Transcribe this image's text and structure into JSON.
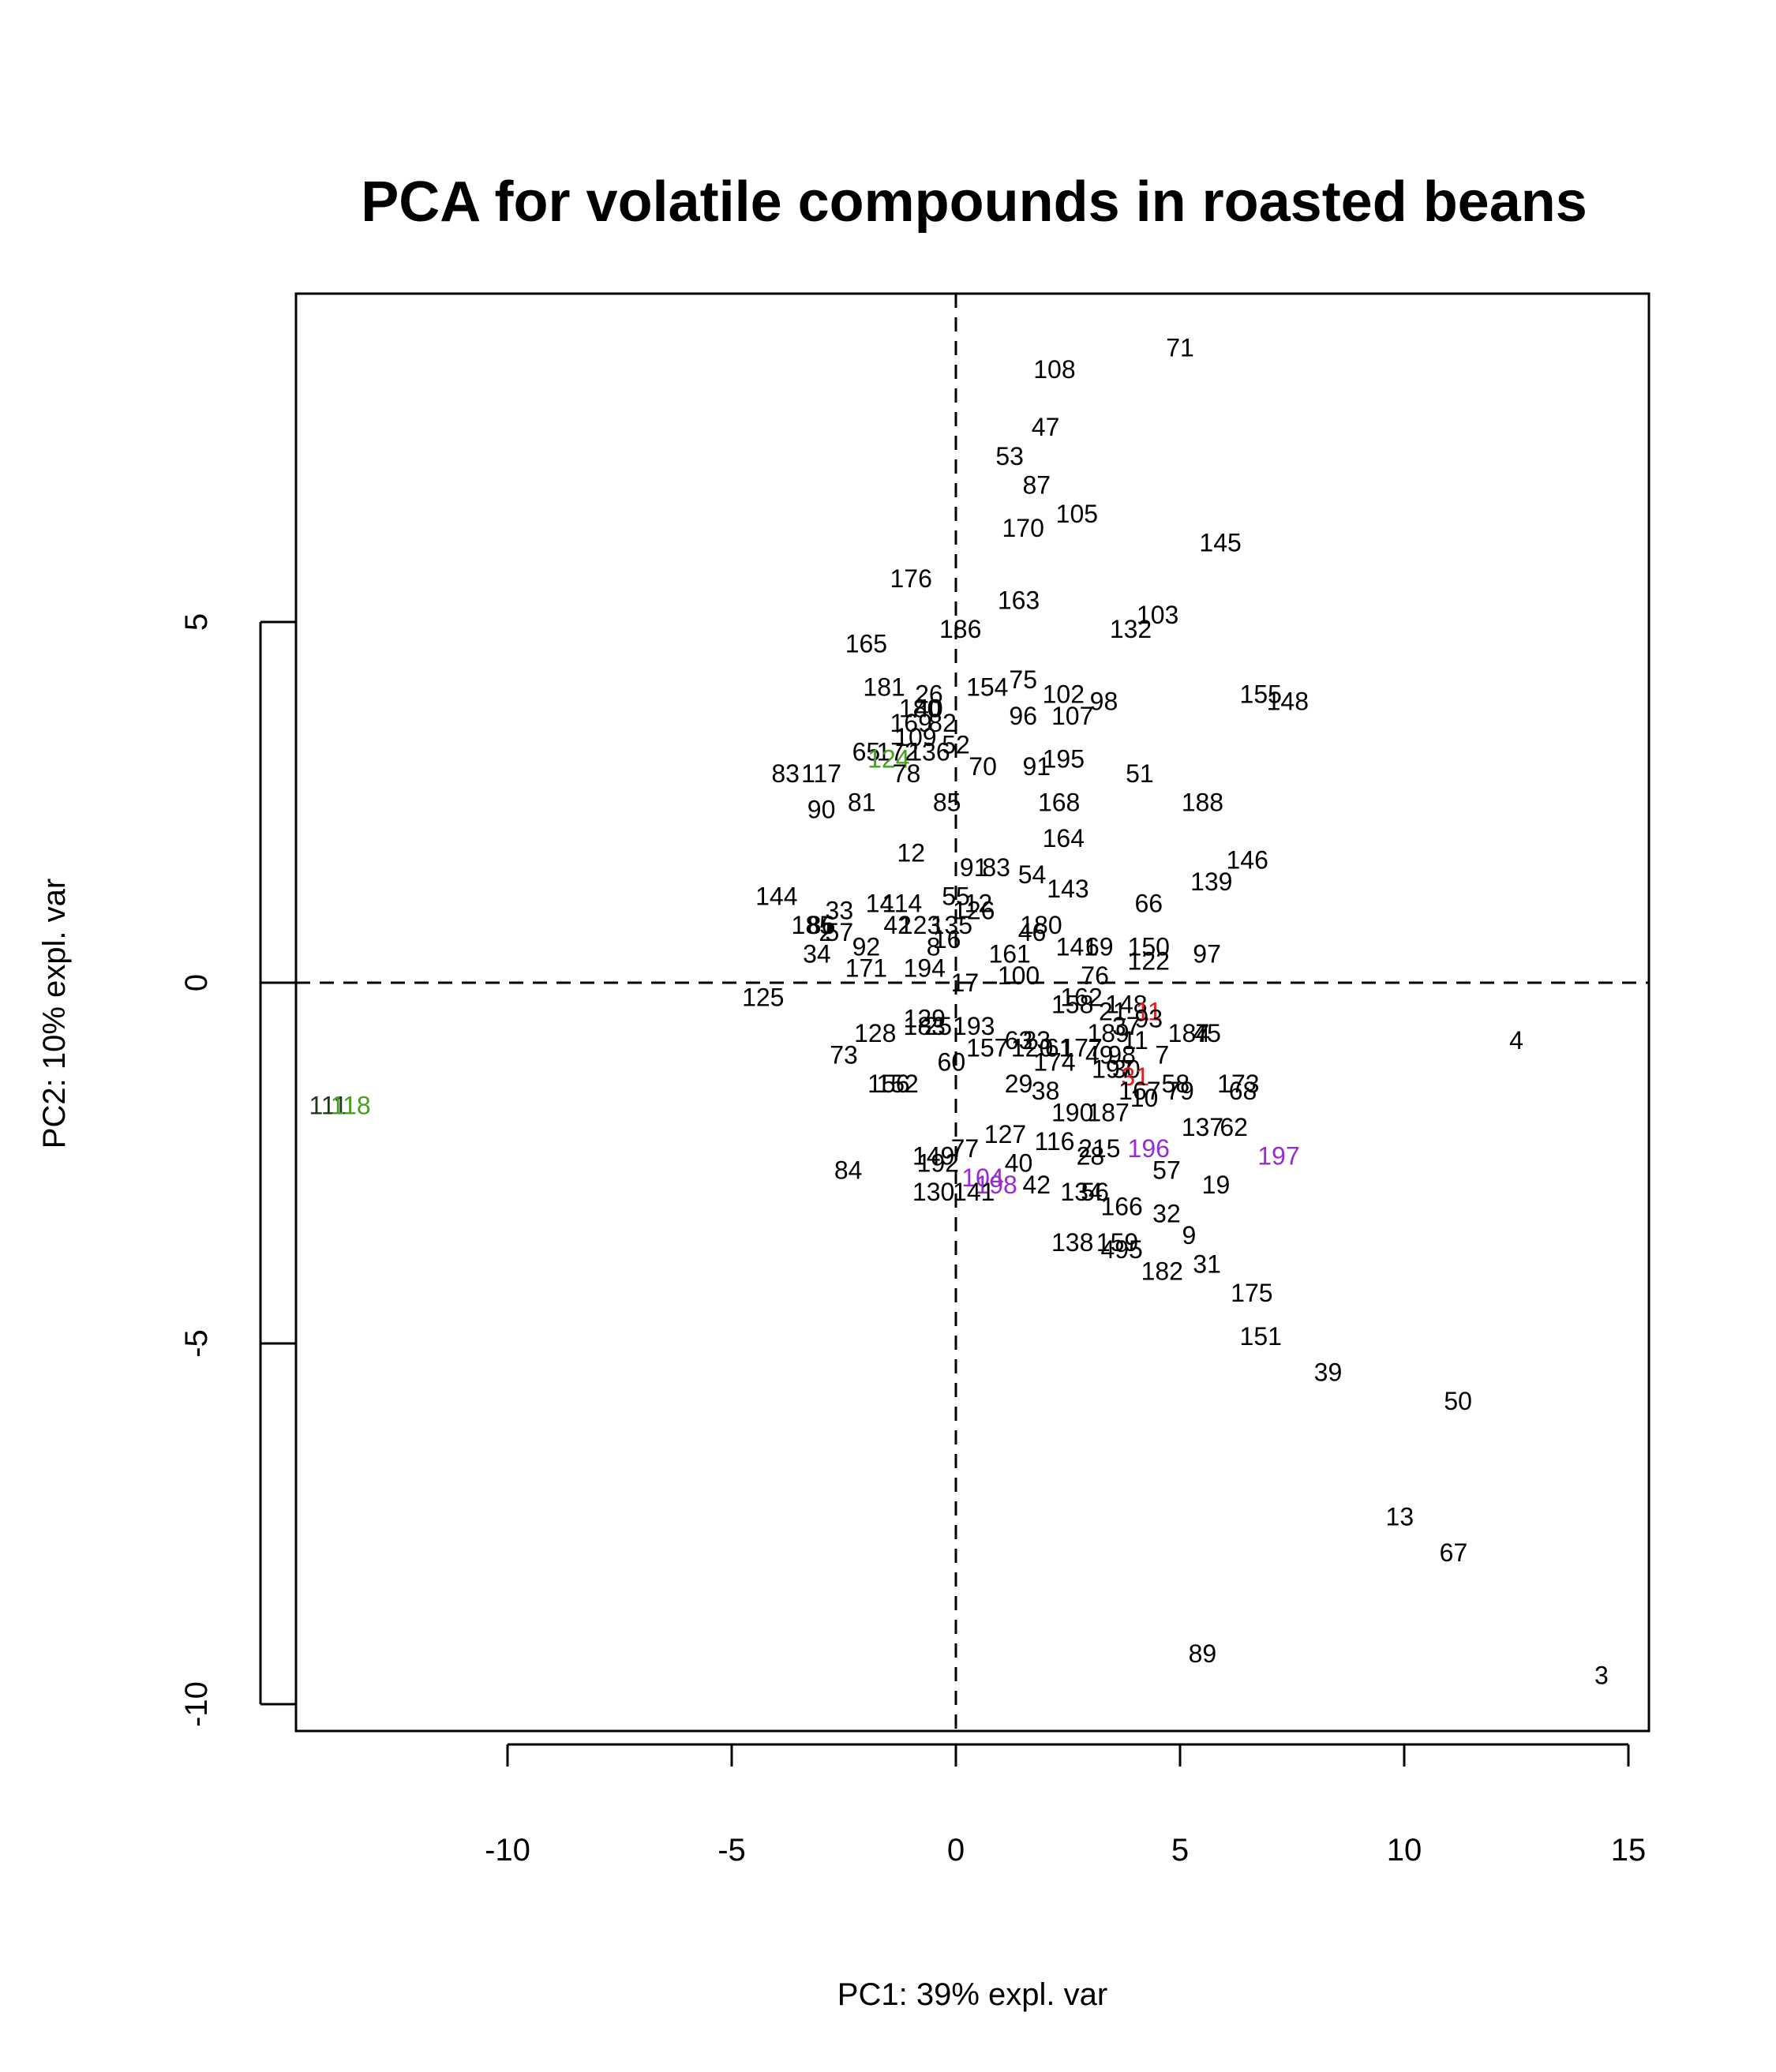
{
  "chart_data": {
    "type": "scatter",
    "title": "PCA for volatile compounds in roasted beans",
    "xlabel": "PC1: 39% expl. var",
    "ylabel": "PC2: 10% expl. var",
    "xlim": [
      -14.8,
      15.5
    ],
    "ylim": [
      -10.4,
      9.6
    ],
    "xticks": [
      -10,
      -5,
      0,
      5,
      10,
      15
    ],
    "yticks": [
      -10,
      -5,
      0,
      5
    ],
    "reference_lines": {
      "x": 0,
      "y": 0,
      "style": "dashed"
    },
    "colors": {
      "default": "#000000",
      "red": "#DF1F1F",
      "green": "#46A020",
      "purple": "#9A2BD3",
      "dark": "#1E3A10"
    },
    "points": [
      {
        "label": "71",
        "x": 5.0,
        "y": 8.8,
        "color": "default"
      },
      {
        "label": "108",
        "x": 2.2,
        "y": 8.5,
        "color": "default"
      },
      {
        "label": "47",
        "x": 2.0,
        "y": 7.7,
        "color": "default"
      },
      {
        "label": "53",
        "x": 1.2,
        "y": 7.3,
        "color": "default"
      },
      {
        "label": "87",
        "x": 1.8,
        "y": 6.9,
        "color": "default"
      },
      {
        "label": "105",
        "x": 2.7,
        "y": 6.5,
        "color": "default"
      },
      {
        "label": "170",
        "x": 1.5,
        "y": 6.3,
        "color": "default"
      },
      {
        "label": "145",
        "x": 5.9,
        "y": 6.1,
        "color": "default"
      },
      {
        "label": "176",
        "x": -1.0,
        "y": 5.6,
        "color": "default"
      },
      {
        "label": "163",
        "x": 1.4,
        "y": 5.3,
        "color": "default"
      },
      {
        "label": "103",
        "x": 4.5,
        "y": 5.1,
        "color": "default"
      },
      {
        "label": "132",
        "x": 3.9,
        "y": 4.9,
        "color": "default"
      },
      {
        "label": "186",
        "x": 0.1,
        "y": 4.9,
        "color": "default"
      },
      {
        "label": "165",
        "x": -2.0,
        "y": 4.7,
        "color": "default"
      },
      {
        "label": "181",
        "x": -1.6,
        "y": 4.1,
        "color": "default"
      },
      {
        "label": "26",
        "x": -0.6,
        "y": 4.0,
        "color": "default"
      },
      {
        "label": "154",
        "x": 0.7,
        "y": 4.1,
        "color": "default"
      },
      {
        "label": "75",
        "x": 1.5,
        "y": 4.2,
        "color": "default"
      },
      {
        "label": "102",
        "x": 2.4,
        "y": 4.0,
        "color": "default"
      },
      {
        "label": "98",
        "x": 3.3,
        "y": 3.9,
        "color": "default"
      },
      {
        "label": "155",
        "x": 6.8,
        "y": 4.0,
        "color": "default"
      },
      {
        "label": "148",
        "x": 7.4,
        "y": 3.9,
        "color": "default"
      },
      {
        "label": "180",
        "x": -0.8,
        "y": 3.8,
        "color": "default"
      },
      {
        "label": "40",
        "x": -0.6,
        "y": 3.8,
        "color": "default"
      },
      {
        "label": "96",
        "x": 1.5,
        "y": 3.7,
        "color": "default"
      },
      {
        "label": "107",
        "x": 2.6,
        "y": 3.7,
        "color": "default"
      },
      {
        "label": "169",
        "x": -1.0,
        "y": 3.6,
        "color": "default"
      },
      {
        "label": "82",
        "x": -0.3,
        "y": 3.6,
        "color": "default"
      },
      {
        "label": "109",
        "x": -0.9,
        "y": 3.4,
        "color": "default"
      },
      {
        "label": "172",
        "x": -1.3,
        "y": 3.2,
        "color": "default"
      },
      {
        "label": "136",
        "x": -0.6,
        "y": 3.2,
        "color": "default"
      },
      {
        "label": "52",
        "x": 0.0,
        "y": 3.3,
        "color": "default"
      },
      {
        "label": "65",
        "x": -2.0,
        "y": 3.2,
        "color": "default"
      },
      {
        "label": "124",
        "x": -1.5,
        "y": 3.1,
        "color": "green"
      },
      {
        "label": "195",
        "x": 2.4,
        "y": 3.1,
        "color": "default"
      },
      {
        "label": "91",
        "x": 1.8,
        "y": 3.0,
        "color": "default"
      },
      {
        "label": "70",
        "x": 0.6,
        "y": 3.0,
        "color": "default"
      },
      {
        "label": "78",
        "x": -1.1,
        "y": 2.9,
        "color": "default"
      },
      {
        "label": "83",
        "x": -3.8,
        "y": 2.9,
        "color": "default"
      },
      {
        "label": "117",
        "x": -3.0,
        "y": 2.9,
        "color": "default"
      },
      {
        "label": "51",
        "x": 4.1,
        "y": 2.9,
        "color": "default"
      },
      {
        "label": "188",
        "x": 5.5,
        "y": 2.5,
        "color": "default"
      },
      {
        "label": "85",
        "x": -0.2,
        "y": 2.5,
        "color": "default"
      },
      {
        "label": "81",
        "x": -2.1,
        "y": 2.5,
        "color": "default"
      },
      {
        "label": "90",
        "x": -3.0,
        "y": 2.4,
        "color": "default"
      },
      {
        "label": "168",
        "x": 2.3,
        "y": 2.5,
        "color": "default"
      },
      {
        "label": "164",
        "x": 2.4,
        "y": 2.0,
        "color": "default"
      },
      {
        "label": "12",
        "x": -1.0,
        "y": 1.8,
        "color": "default"
      },
      {
        "label": "146",
        "x": 6.5,
        "y": 1.7,
        "color": "default"
      },
      {
        "label": "91",
        "x": 0.4,
        "y": 1.6,
        "color": "default"
      },
      {
        "label": "83",
        "x": 0.9,
        "y": 1.6,
        "color": "default"
      },
      {
        "label": "54",
        "x": 1.7,
        "y": 1.5,
        "color": "default"
      },
      {
        "label": "139",
        "x": 5.7,
        "y": 1.4,
        "color": "default"
      },
      {
        "label": "143",
        "x": 2.5,
        "y": 1.3,
        "color": "default"
      },
      {
        "label": "144",
        "x": -4.0,
        "y": 1.2,
        "color": "default"
      },
      {
        "label": "55",
        "x": 0.0,
        "y": 1.2,
        "color": "default"
      },
      {
        "label": "66",
        "x": 4.3,
        "y": 1.1,
        "color": "default"
      },
      {
        "label": "14",
        "x": -1.7,
        "y": 1.1,
        "color": "default"
      },
      {
        "label": "114",
        "x": -1.2,
        "y": 1.1,
        "color": "default"
      },
      {
        "label": "33",
        "x": -2.6,
        "y": 1.0,
        "color": "default"
      },
      {
        "label": "12",
        "x": 0.5,
        "y": 1.1,
        "color": "default"
      },
      {
        "label": "126",
        "x": 0.4,
        "y": 1.0,
        "color": "default"
      },
      {
        "label": "42",
        "x": -1.3,
        "y": 0.8,
        "color": "default"
      },
      {
        "label": "123",
        "x": -0.8,
        "y": 0.8,
        "color": "default"
      },
      {
        "label": "135",
        "x": -0.1,
        "y": 0.8,
        "color": "default"
      },
      {
        "label": "180",
        "x": 1.9,
        "y": 0.8,
        "color": "default"
      },
      {
        "label": "46",
        "x": 1.7,
        "y": 0.7,
        "color": "default"
      },
      {
        "label": "185",
        "x": -3.2,
        "y": 0.8,
        "color": "default"
      },
      {
        "label": "86",
        "x": -3.0,
        "y": 0.8,
        "color": "default"
      },
      {
        "label": "57",
        "x": -2.6,
        "y": 0.7,
        "color": "default"
      },
      {
        "label": "2",
        "x": -2.9,
        "y": 0.7,
        "color": "default"
      },
      {
        "label": "16",
        "x": -0.2,
        "y": 0.6,
        "color": "default"
      },
      {
        "label": "92",
        "x": -2.0,
        "y": 0.5,
        "color": "default"
      },
      {
        "label": "150",
        "x": 4.3,
        "y": 0.5,
        "color": "default"
      },
      {
        "label": "141",
        "x": 2.7,
        "y": 0.5,
        "color": "default"
      },
      {
        "label": "69",
        "x": 3.2,
        "y": 0.5,
        "color": "default"
      },
      {
        "label": "8",
        "x": -0.5,
        "y": 0.5,
        "color": "default"
      },
      {
        "label": "161",
        "x": 1.2,
        "y": 0.4,
        "color": "default"
      },
      {
        "label": "97",
        "x": 5.6,
        "y": 0.4,
        "color": "default"
      },
      {
        "label": "122",
        "x": 4.3,
        "y": 0.3,
        "color": "default"
      },
      {
        "label": "34",
        "x": -3.1,
        "y": 0.4,
        "color": "default"
      },
      {
        "label": "171",
        "x": -2.0,
        "y": 0.2,
        "color": "default"
      },
      {
        "label": "194",
        "x": -0.7,
        "y": 0.2,
        "color": "default"
      },
      {
        "label": "100",
        "x": 1.4,
        "y": 0.1,
        "color": "default"
      },
      {
        "label": "76",
        "x": 3.1,
        "y": 0.1,
        "color": "default"
      },
      {
        "label": "17",
        "x": 0.2,
        "y": 0.0,
        "color": "default"
      },
      {
        "label": "125",
        "x": -4.3,
        "y": -0.2,
        "color": "default"
      },
      {
        "label": "162",
        "x": 2.8,
        "y": -0.2,
        "color": "default"
      },
      {
        "label": "158",
        "x": 2.6,
        "y": -0.3,
        "color": "default"
      },
      {
        "label": "148",
        "x": 3.8,
        "y": -0.3,
        "color": "default"
      },
      {
        "label": "21",
        "x": 3.5,
        "y": -0.4,
        "color": "default"
      },
      {
        "label": "11",
        "x": 4.3,
        "y": -0.4,
        "color": "red"
      },
      {
        "label": "93",
        "x": 4.3,
        "y": -0.5,
        "color": "default"
      },
      {
        "label": "129",
        "x": -0.7,
        "y": -0.5,
        "color": "default"
      },
      {
        "label": "193",
        "x": 0.4,
        "y": -0.6,
        "color": "default"
      },
      {
        "label": "183",
        "x": -0.7,
        "y": -0.6,
        "color": "default"
      },
      {
        "label": "25",
        "x": -0.4,
        "y": -0.6,
        "color": "default"
      },
      {
        "label": "128",
        "x": -1.8,
        "y": -0.7,
        "color": "default"
      },
      {
        "label": "189",
        "x": 3.4,
        "y": -0.7,
        "color": "default"
      },
      {
        "label": "37",
        "x": 3.8,
        "y": -0.6,
        "color": "default"
      },
      {
        "label": "184",
        "x": 5.2,
        "y": -0.7,
        "color": "default"
      },
      {
        "label": "7",
        "x": 5.5,
        "y": -0.7,
        "color": "default"
      },
      {
        "label": "45",
        "x": 5.6,
        "y": -0.7,
        "color": "default"
      },
      {
        "label": "4",
        "x": 12.5,
        "y": -0.8,
        "color": "default"
      },
      {
        "label": "63",
        "x": 1.4,
        "y": -0.8,
        "color": "default"
      },
      {
        "label": "23",
        "x": 1.8,
        "y": -0.8,
        "color": "default"
      },
      {
        "label": "11",
        "x": 4.0,
        "y": -0.8,
        "color": "default"
      },
      {
        "label": "157",
        "x": 0.7,
        "y": -0.9,
        "color": "default"
      },
      {
        "label": "120",
        "x": 1.7,
        "y": -0.9,
        "color": "default"
      },
      {
        "label": "61",
        "x": 2.3,
        "y": -0.9,
        "color": "default"
      },
      {
        "label": "177",
        "x": 2.8,
        "y": -0.9,
        "color": "default"
      },
      {
        "label": "73",
        "x": -2.5,
        "y": -1.0,
        "color": "default"
      },
      {
        "label": "49",
        "x": 3.2,
        "y": -1.0,
        "color": "default"
      },
      {
        "label": "98",
        "x": 3.7,
        "y": -1.0,
        "color": "default"
      },
      {
        "label": "7",
        "x": 4.6,
        "y": -1.0,
        "color": "default"
      },
      {
        "label": "174",
        "x": 2.2,
        "y": -1.1,
        "color": "default"
      },
      {
        "label": "60",
        "x": -0.1,
        "y": -1.1,
        "color": "default"
      },
      {
        "label": "197",
        "x": 3.5,
        "y": -1.2,
        "color": "default"
      },
      {
        "label": "30",
        "x": 3.8,
        "y": -1.2,
        "color": "default"
      },
      {
        "label": "31",
        "x": 4.0,
        "y": -1.3,
        "color": "red"
      },
      {
        "label": "152",
        "x": -1.3,
        "y": -1.4,
        "color": "default"
      },
      {
        "label": "156",
        "x": -1.5,
        "y": -1.4,
        "color": "default"
      },
      {
        "label": "29",
        "x": 1.4,
        "y": -1.4,
        "color": "default"
      },
      {
        "label": "38",
        "x": 2.0,
        "y": -1.5,
        "color": "default"
      },
      {
        "label": "58",
        "x": 4.9,
        "y": -1.4,
        "color": "default"
      },
      {
        "label": "173",
        "x": 6.3,
        "y": -1.4,
        "color": "default"
      },
      {
        "label": "167",
        "x": 4.1,
        "y": -1.5,
        "color": "default"
      },
      {
        "label": "79",
        "x": 5.0,
        "y": -1.5,
        "color": "default"
      },
      {
        "label": "68",
        "x": 6.4,
        "y": -1.5,
        "color": "default"
      },
      {
        "label": "10",
        "x": 4.2,
        "y": -1.6,
        "color": "default"
      },
      {
        "label": "111",
        "x": -14.0,
        "y": -1.7,
        "color": "dark"
      },
      {
        "label": "118",
        "x": -13.5,
        "y": -1.7,
        "color": "green"
      },
      {
        "label": "190",
        "x": 2.6,
        "y": -1.8,
        "color": "default"
      },
      {
        "label": "187",
        "x": 3.4,
        "y": -1.8,
        "color": "default"
      },
      {
        "label": "137",
        "x": 5.5,
        "y": -2.0,
        "color": "default"
      },
      {
        "label": "62",
        "x": 6.2,
        "y": -2.0,
        "color": "default"
      },
      {
        "label": "127",
        "x": 1.1,
        "y": -2.1,
        "color": "default"
      },
      {
        "label": "116",
        "x": 2.2,
        "y": -2.2,
        "color": "default"
      },
      {
        "label": "196",
        "x": 4.3,
        "y": -2.3,
        "color": "purple"
      },
      {
        "label": "197",
        "x": 7.2,
        "y": -2.4,
        "color": "purple"
      },
      {
        "label": "215",
        "x": 3.2,
        "y": -2.3,
        "color": "default"
      },
      {
        "label": "28",
        "x": 3.0,
        "y": -2.4,
        "color": "default"
      },
      {
        "label": "77",
        "x": 0.2,
        "y": -2.3,
        "color": "default"
      },
      {
        "label": "149",
        "x": -0.5,
        "y": -2.4,
        "color": "default"
      },
      {
        "label": "192",
        "x": -0.4,
        "y": -2.5,
        "color": "default"
      },
      {
        "label": "40",
        "x": 1.4,
        "y": -2.5,
        "color": "default"
      },
      {
        "label": "57",
        "x": 4.7,
        "y": -2.6,
        "color": "default"
      },
      {
        "label": "84",
        "x": -2.4,
        "y": -2.6,
        "color": "default"
      },
      {
        "label": "104",
        "x": 0.6,
        "y": -2.7,
        "color": "purple"
      },
      {
        "label": "198",
        "x": 0.9,
        "y": -2.8,
        "color": "purple"
      },
      {
        "label": "42",
        "x": 1.8,
        "y": -2.8,
        "color": "default"
      },
      {
        "label": "19",
        "x": 5.8,
        "y": -2.8,
        "color": "default"
      },
      {
        "label": "141",
        "x": 0.4,
        "y": -2.9,
        "color": "default"
      },
      {
        "label": "130",
        "x": -0.5,
        "y": -2.9,
        "color": "default"
      },
      {
        "label": "134",
        "x": 2.8,
        "y": -2.9,
        "color": "default"
      },
      {
        "label": "56",
        "x": 3.1,
        "y": -2.9,
        "color": "default"
      },
      {
        "label": "166",
        "x": 3.7,
        "y": -3.1,
        "color": "default"
      },
      {
        "label": "32",
        "x": 4.7,
        "y": -3.2,
        "color": "default"
      },
      {
        "label": "9",
        "x": 5.2,
        "y": -3.5,
        "color": "default"
      },
      {
        "label": "138",
        "x": 2.6,
        "y": -3.6,
        "color": "default"
      },
      {
        "label": "159",
        "x": 3.6,
        "y": -3.6,
        "color": "default"
      },
      {
        "label": "495",
        "x": 3.7,
        "y": -3.7,
        "color": "default"
      },
      {
        "label": "31",
        "x": 5.6,
        "y": -3.9,
        "color": "default"
      },
      {
        "label": "182",
        "x": 4.6,
        "y": -4.0,
        "color": "default"
      },
      {
        "label": "175",
        "x": 6.6,
        "y": -4.3,
        "color": "default"
      },
      {
        "label": "151",
        "x": 6.8,
        "y": -4.9,
        "color": "default"
      },
      {
        "label": "39",
        "x": 8.3,
        "y": -5.4,
        "color": "default"
      },
      {
        "label": "50",
        "x": 11.2,
        "y": -5.8,
        "color": "default"
      },
      {
        "label": "13",
        "x": 9.9,
        "y": -7.4,
        "color": "default"
      },
      {
        "label": "67",
        "x": 11.1,
        "y": -7.9,
        "color": "default"
      },
      {
        "label": "89",
        "x": 5.5,
        "y": -9.3,
        "color": "default"
      },
      {
        "label": "3",
        "x": 14.4,
        "y": -9.6,
        "color": "default"
      }
    ]
  }
}
